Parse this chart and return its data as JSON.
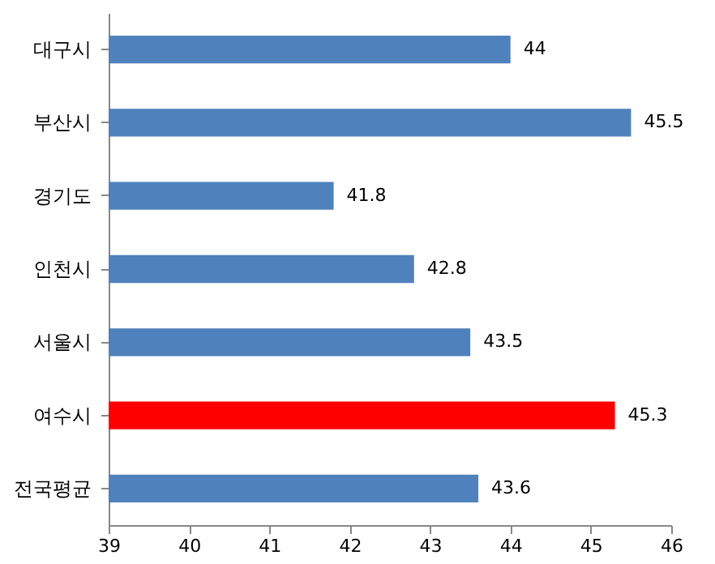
{
  "chart_data": {
    "type": "bar",
    "orientation": "horizontal",
    "categories": [
      "대구시",
      "부산시",
      "경기도",
      "인천시",
      "서울시",
      "여수시",
      "전국평균"
    ],
    "values": [
      44,
      45.5,
      41.8,
      42.8,
      43.5,
      45.3,
      43.6
    ],
    "colors": [
      "#4f81bd",
      "#4f81bd",
      "#4f81bd",
      "#4f81bd",
      "#4f81bd",
      "#ff0000",
      "#4f81bd"
    ],
    "xlim": [
      39,
      46
    ],
    "xticks": [
      39,
      40,
      41,
      42,
      43,
      44,
      45,
      46
    ],
    "data_labels": true,
    "grid": false
  }
}
